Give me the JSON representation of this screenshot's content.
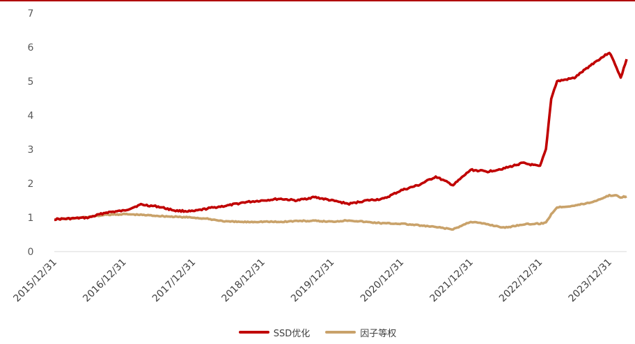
{
  "colors": {
    "ssd": "#c00000",
    "equal": "#c9a26a",
    "axis": "#d9d9d9",
    "top": "#b00000"
  },
  "chart_data": {
    "type": "line",
    "title": "",
    "xlabel": "",
    "ylabel": "",
    "ylim": [
      0,
      7
    ],
    "yticks": [
      "0",
      "1",
      "2",
      "3",
      "4",
      "5",
      "6",
      "7"
    ],
    "xticks": [
      "2015/12/31",
      "2016/12/31",
      "2017/12/31",
      "2018/12/31",
      "2019/12/31",
      "2020/12/31",
      "2021/12/31",
      "2022/12/31",
      "2023/12/31"
    ],
    "grid": false,
    "legend_position": "bottom",
    "series": [
      {
        "name": "SSD优化",
        "color": "#c00000",
        "x": [
          "2015/12/31",
          "2016/03/31",
          "2016/06/30",
          "2016/09/30",
          "2016/12/31",
          "2017/03/31",
          "2017/06/30",
          "2017/09/30",
          "2017/12/31",
          "2018/03/31",
          "2018/06/30",
          "2018/09/30",
          "2018/12/31",
          "2019/03/31",
          "2019/06/30",
          "2019/09/30",
          "2019/12/31",
          "2020/03/31",
          "2020/06/30",
          "2020/09/30",
          "2020/12/31",
          "2021/03/31",
          "2021/06/30",
          "2021/09/30",
          "2021/12/31",
          "2022/03/31",
          "2022/06/30",
          "2022/09/30",
          "2022/12/31",
          "2023/01/31",
          "2023/02/28",
          "2023/03/31",
          "2023/06/30",
          "2023/09/30",
          "2023/12/31",
          "2024/01/31",
          "2024/02/29",
          "2024/03/31"
        ],
        "values": [
          0.95,
          0.97,
          1.0,
          1.15,
          1.2,
          1.38,
          1.32,
          1.2,
          1.18,
          1.28,
          1.35,
          1.45,
          1.5,
          1.55,
          1.5,
          1.6,
          1.5,
          1.4,
          1.5,
          1.55,
          1.8,
          1.95,
          2.2,
          1.95,
          2.4,
          2.35,
          2.45,
          2.6,
          2.5,
          3.0,
          4.5,
          5.0,
          5.1,
          5.5,
          5.85,
          5.5,
          5.1,
          5.65
        ]
      },
      {
        "name": "因子等权",
        "color": "#c9a26a",
        "x": [
          "2015/12/31",
          "2016/03/31",
          "2016/06/30",
          "2016/09/30",
          "2016/12/31",
          "2017/03/31",
          "2017/06/30",
          "2017/09/30",
          "2017/12/31",
          "2018/03/31",
          "2018/06/30",
          "2018/09/30",
          "2018/12/31",
          "2019/03/31",
          "2019/06/30",
          "2019/09/30",
          "2019/12/31",
          "2020/03/31",
          "2020/06/30",
          "2020/09/30",
          "2020/12/31",
          "2021/03/31",
          "2021/06/30",
          "2021/09/30",
          "2021/12/31",
          "2022/03/31",
          "2022/06/30",
          "2022/09/30",
          "2022/12/31",
          "2023/01/31",
          "2023/02/28",
          "2023/03/31",
          "2023/06/30",
          "2023/09/30",
          "2023/12/31",
          "2024/01/31",
          "2024/02/29",
          "2024/03/31"
        ],
        "values": [
          0.95,
          0.97,
          1.02,
          1.08,
          1.1,
          1.08,
          1.05,
          1.02,
          1.0,
          0.95,
          0.88,
          0.87,
          0.88,
          0.87,
          0.9,
          0.9,
          0.88,
          0.92,
          0.87,
          0.83,
          0.82,
          0.77,
          0.72,
          0.65,
          0.88,
          0.8,
          0.7,
          0.8,
          0.82,
          0.85,
          1.1,
          1.3,
          1.35,
          1.45,
          1.65,
          1.65,
          1.6,
          1.62
        ]
      }
    ]
  }
}
